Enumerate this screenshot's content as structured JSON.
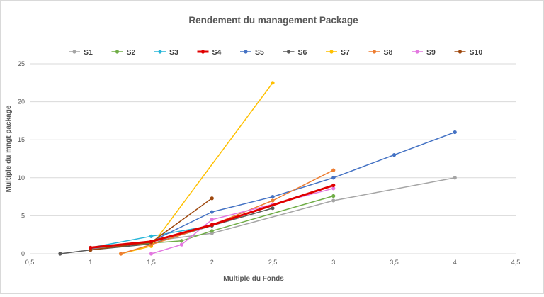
{
  "chart_data": {
    "type": "line",
    "title": "Rendement du management Package",
    "xlabel": "Multiple du Fonds",
    "ylabel": "Multiple du mngt package",
    "xlim": [
      0.5,
      4.5
    ],
    "ylim": [
      0,
      25
    ],
    "x_ticks": [
      "0,5",
      "1",
      "1,5",
      "2",
      "2,5",
      "3",
      "3,5",
      "4",
      "4,5"
    ],
    "y_ticks": [
      "0",
      "5",
      "10",
      "15",
      "20",
      "25"
    ],
    "grid": "horizontal",
    "legend_position": "top",
    "series": [
      {
        "name": "S1",
        "color": "#a5a5a5",
        "width": 1.5,
        "points": [
          [
            1,
            0.6
          ],
          [
            2,
            2.7
          ],
          [
            3,
            7.0
          ],
          [
            4,
            10.0
          ]
        ]
      },
      {
        "name": "S2",
        "color": "#70ad47",
        "width": 1.5,
        "points": [
          [
            1,
            0.8
          ],
          [
            1.75,
            1.7
          ],
          [
            2,
            3.0
          ],
          [
            3,
            7.6
          ]
        ]
      },
      {
        "name": "S3",
        "color": "#26b5d8",
        "width": 1.5,
        "points": [
          [
            1,
            0.8
          ],
          [
            1.5,
            2.3
          ],
          [
            2,
            3.7
          ]
        ]
      },
      {
        "name": "S4",
        "color": "#e00000",
        "width": 3,
        "points": [
          [
            1,
            0.8
          ],
          [
            1.5,
            1.6
          ],
          [
            2,
            3.8
          ],
          [
            3,
            9.0
          ]
        ]
      },
      {
        "name": "S5",
        "color": "#4472c4",
        "width": 1.5,
        "points": [
          [
            1,
            0.7
          ],
          [
            1.5,
            1.6
          ],
          [
            2,
            5.5
          ],
          [
            2.5,
            7.5
          ],
          [
            3,
            10.0
          ],
          [
            3.5,
            13.0
          ],
          [
            4,
            16.0
          ]
        ]
      },
      {
        "name": "S6",
        "color": "#595959",
        "width": 1.5,
        "points": [
          [
            0.75,
            0.0
          ],
          [
            1,
            0.5
          ],
          [
            1.5,
            1.3
          ],
          [
            2,
            3.7
          ],
          [
            2.5,
            6.0
          ]
        ]
      },
      {
        "name": "S7",
        "color": "#ffc000",
        "width": 1.5,
        "points": [
          [
            1.25,
            0.0
          ],
          [
            1.5,
            1.0
          ],
          [
            2.5,
            22.5
          ]
        ]
      },
      {
        "name": "S8",
        "color": "#ed7d31",
        "width": 1.5,
        "points": [
          [
            1.25,
            0.0
          ],
          [
            1.5,
            1.2
          ],
          [
            2,
            3.8
          ],
          [
            2.5,
            7.0
          ],
          [
            3,
            11.0
          ]
        ]
      },
      {
        "name": "S9",
        "color": "#e377e0",
        "width": 1.5,
        "points": [
          [
            1.5,
            0.0
          ],
          [
            1.75,
            1.2
          ],
          [
            2,
            4.5
          ],
          [
            2.5,
            6.5
          ],
          [
            3,
            8.6
          ]
        ]
      },
      {
        "name": "S10",
        "color": "#9e480e",
        "width": 1.5,
        "points": [
          [
            1,
            0.5
          ],
          [
            1.5,
            1.5
          ],
          [
            2,
            7.3
          ]
        ]
      }
    ]
  }
}
